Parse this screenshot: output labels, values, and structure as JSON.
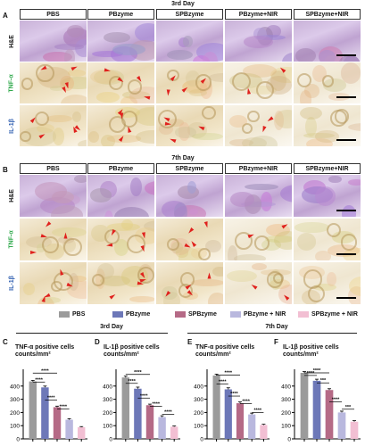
{
  "panel_labels": {
    "a": "A",
    "b": "B",
    "c": "C",
    "d": "D",
    "e": "E",
    "f": "F"
  },
  "day3_title": "3rd Day",
  "day7_title": "7th Day",
  "groups": [
    "PBS",
    "PBzyme",
    "SPBzyme",
    "PBzyme+NIR",
    "SPBzyme+NIR"
  ],
  "row_labels": {
    "he": "H&E",
    "tnf": "TNF-α",
    "il": "IL-1β"
  },
  "colors": {
    "tnf": "#2ea84a",
    "il": "#2f5fb0",
    "arrow": "#e0211d"
  },
  "legend": [
    {
      "label": "PBS",
      "color": "#9b9b9b"
    },
    {
      "label": "PBzyme",
      "color": "#6d78b8"
    },
    {
      "label": "SPBzyme",
      "color": "#b56a86"
    },
    {
      "label": "PBzyme + NIR",
      "color": "#b9b8de"
    },
    {
      "label": "SPBzyme + NIR",
      "color": "#f2bfd3"
    }
  ],
  "section_titles": {
    "left": "3rd Day",
    "right": "7th Day"
  },
  "chart_data": [
    {
      "type": "bar",
      "title": "TNF-α positive cells counts/mm²",
      "categories": [
        "PBS",
        "PBzyme",
        "SPBzyme",
        "PBzyme + NIR",
        "SPBzyme + NIR"
      ],
      "values": [
        435,
        390,
        240,
        145,
        88
      ],
      "errors": [
        8,
        10,
        8,
        8,
        5
      ],
      "ylim": [
        0,
        500
      ],
      "ticks": [
        0,
        100,
        200,
        300,
        400
      ],
      "significance": [
        "****",
        "****",
        "****",
        "****"
      ]
    },
    {
      "type": "bar",
      "title": "IL-1β positive cells counts/mm²",
      "categories": [
        "PBS",
        "PBzyme",
        "SPBzyme",
        "PBzyme + NIR",
        "SPBzyme + NIR"
      ],
      "values": [
        465,
        380,
        255,
        165,
        92
      ],
      "errors": [
        10,
        12,
        8,
        10,
        6
      ],
      "ylim": [
        0,
        500
      ],
      "ticks": [
        0,
        100,
        200,
        300,
        400
      ],
      "significance": [
        "****",
        "****",
        "****",
        "****",
        "****"
      ]
    },
    {
      "type": "bar",
      "title": "TNF-α positive cells counts/mm²",
      "categories": [
        "PBS",
        "PBzyme",
        "SPBzyme",
        "PBzyme + NIR",
        "SPBzyme + NIR"
      ],
      "values": [
        480,
        375,
        270,
        185,
        105
      ],
      "errors": [
        10,
        12,
        10,
        10,
        6
      ],
      "ylim": [
        0,
        500
      ],
      "ticks": [
        0,
        100,
        200,
        300,
        400
      ],
      "significance": [
        "****",
        "****",
        "****",
        "****",
        "****"
      ]
    },
    {
      "type": "bar",
      "title": "IL-1β positive cells counts/mm²",
      "categories": [
        "PBS",
        "PBzyme",
        "SPBzyme",
        "PBzyme + NIR",
        "SPBzyme + NIR"
      ],
      "values": [
        500,
        440,
        370,
        200,
        130
      ],
      "errors": [
        10,
        12,
        10,
        10,
        8
      ],
      "ylim": [
        0,
        500
      ],
      "ticks": [
        0,
        100,
        200,
        300,
        400
      ],
      "significance": [
        "****",
        "***",
        "****",
        "****",
        "***"
      ]
    }
  ]
}
